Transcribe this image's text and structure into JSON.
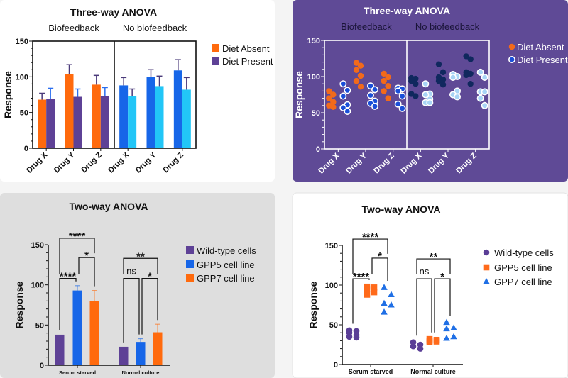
{
  "chart_data": [
    {
      "type": "bar",
      "title": "Three-way ANOVA",
      "ylabel": "Response",
      "ylim": [
        0,
        150
      ],
      "y_ticks": [
        "0",
        "50",
        "100",
        "150"
      ],
      "categories": [
        "Drug X",
        "Drug Y",
        "Drug Z"
      ],
      "legend": {
        "position": "right",
        "entries": [
          "Diet Absent",
          "Diet Present"
        ]
      },
      "panels": [
        {
          "name": "Biofeedback",
          "series": [
            {
              "name": "Diet Absent",
              "values": [
                68,
                104,
                89
              ],
              "error_upper": [
                77,
                117,
                102
              ],
              "color": "#ff6a0d"
            },
            {
              "name": "Diet Present",
              "values": [
                69,
                72,
                73
              ],
              "error_upper": [
                84,
                83,
                85
              ],
              "color": "#5e4196"
            }
          ]
        },
        {
          "name": "No biofeedback",
          "series": [
            {
              "name": "Diet Absent",
              "values": [
                88,
                100,
                109
              ],
              "error_upper": [
                99,
                110,
                124
              ],
              "color": "#1766e8"
            },
            {
              "name": "Diet Present",
              "values": [
                73,
                87,
                82
              ],
              "error_upper": [
                83,
                101,
                99
              ],
              "color": "#22c6f7"
            }
          ]
        }
      ],
      "background": "#ffffff"
    },
    {
      "type": "scatter",
      "title": "Three-way ANOVA",
      "ylabel": "Response",
      "ylim": [
        0,
        150
      ],
      "y_ticks": [
        "0",
        "50",
        "100",
        "150"
      ],
      "categories": [
        "Drug X",
        "Drug Y",
        "Drug Z"
      ],
      "legend": {
        "position": "right",
        "entries": [
          "Diet Absent",
          "Diet Present"
        ]
      },
      "panels": [
        {
          "name": "Biofeedback",
          "series": [
            {
              "name": "Diet Absent",
              "color": "#f26a1b",
              "points": [
                [
                  80,
                  75,
                  70,
                  65,
                  60,
                  58
                ],
                [
                  119,
                  115,
                  109,
                  101,
                  94,
                  86
                ],
                [
                  104,
                  99,
                  94,
                  87,
                  80,
                  70
                ]
              ]
            },
            {
              "name": "Diet Present",
              "color": "#1a4fd8",
              "points": [
                [
                  90,
                  81,
                  73,
                  61,
                  57,
                  52
                ],
                [
                  87,
                  82,
                  74,
                  66,
                  63,
                  59
                ],
                [
                  84,
                  83,
                  80,
                  73,
                  62,
                  56
                ]
              ]
            }
          ]
        },
        {
          "name": "No biofeedback",
          "series": [
            {
              "name": "Diet Absent",
              "color": "#10285e",
              "points": [
                [
                  98,
                  97,
                  94,
                  90,
                  76,
                  73
                ],
                [
                  117,
                  106,
                  99,
                  96,
                  94,
                  89
                ],
                [
                  128,
                  124,
                  106,
                  104,
                  102,
                  90
                ]
              ]
            },
            {
              "name": "Diet Present",
              "color": "#a8d4f5",
              "points": [
                [
                  90,
                  76,
                  75,
                  69,
                  64,
                  64
                ],
                [
                  103,
                  100,
                  99,
                  80,
                  75,
                  72
                ],
                [
                  106,
                  99,
                  79,
                  79,
                  70,
                  60
                ]
              ]
            }
          ]
        }
      ],
      "background": "#5f4a96"
    },
    {
      "type": "bar",
      "title": "Two-way ANOVA",
      "ylabel": "Response",
      "ylim": [
        0,
        150
      ],
      "y_ticks": [
        "0",
        "50",
        "100",
        "150"
      ],
      "categories": [
        "Serum starved",
        "Normal culture"
      ],
      "legend": {
        "position": "right",
        "entries": [
          "Wild-type cells",
          "GPP5 cell line",
          "GPP7 cell line"
        ]
      },
      "series": [
        {
          "name": "Wild-type cells",
          "values": [
            38,
            23
          ],
          "error_upper": [
            38,
            23
          ],
          "color": "#5e4196"
        },
        {
          "name": "GPP5 cell line",
          "values": [
            93,
            29
          ],
          "error_upper": [
            99,
            33
          ],
          "color": "#1766e8"
        },
        {
          "name": "GPP7 cell line",
          "values": [
            80,
            41
          ],
          "error_upper": [
            93,
            51
          ],
          "color": "#ff6a0d"
        }
      ],
      "comparisons": [
        {
          "category": 0,
          "from": 0,
          "to": 2,
          "level": 158,
          "label": "****"
        },
        {
          "category": 0,
          "from": 1,
          "to": 2,
          "level": 134,
          "label": "*"
        },
        {
          "category": 0,
          "from": 0,
          "to": 1,
          "level": 108,
          "label": "****"
        },
        {
          "category": 1,
          "from": 0,
          "to": 2,
          "level": 133,
          "label": "**"
        },
        {
          "category": 1,
          "from": 0,
          "to": 1,
          "level": 108,
          "label": "ns"
        },
        {
          "category": 1,
          "from": 1,
          "to": 2,
          "level": 108,
          "label": "*"
        }
      ],
      "background": "#dedede"
    },
    {
      "type": "scatter",
      "title": "Two-way ANOVA",
      "ylabel": "Response",
      "ylim": [
        0,
        150
      ],
      "y_ticks": [
        "0",
        "50",
        "100",
        "150"
      ],
      "categories": [
        "Serum starved",
        "Normal culture"
      ],
      "legend": {
        "position": "right",
        "entries": [
          "Wild-type cells",
          "GPP5 cell line",
          "GPP7 cell line"
        ]
      },
      "series": [
        {
          "name": "Wild-type cells",
          "marker": "circle",
          "color": "#5a3e96",
          "points": [
            [
              43,
              42,
              40,
              37,
              35,
              34
            ],
            [
              28,
              25,
              23,
              20
            ]
          ]
        },
        {
          "name": "GPP5 cell line",
          "marker": "square",
          "color": "#ff6a1a",
          "points": [
            [
              98,
              97,
              95,
              91,
              88
            ],
            [
              32,
              31,
              30,
              29,
              28
            ]
          ]
        },
        {
          "name": "GPP7 cell line",
          "marker": "triangle",
          "color": "#1f6fe5",
          "points": [
            [
              97,
              88,
              77,
              75,
              66
            ],
            [
              53,
              46,
              45,
              35,
              33
            ]
          ]
        }
      ],
      "comparisons": [
        {
          "category": 0,
          "from": 0,
          "to": 2,
          "level": 158,
          "label": "****"
        },
        {
          "category": 0,
          "from": 1,
          "to": 2,
          "level": 134,
          "label": "*"
        },
        {
          "category": 0,
          "from": 0,
          "to": 1,
          "level": 108,
          "label": "****"
        },
        {
          "category": 1,
          "from": 0,
          "to": 2,
          "level": 133,
          "label": "**"
        },
        {
          "category": 1,
          "from": 0,
          "to": 1,
          "level": 108,
          "label": "ns"
        },
        {
          "category": 1,
          "from": 1,
          "to": 2,
          "level": 108,
          "label": "*"
        }
      ],
      "background": "#ffffff"
    }
  ]
}
